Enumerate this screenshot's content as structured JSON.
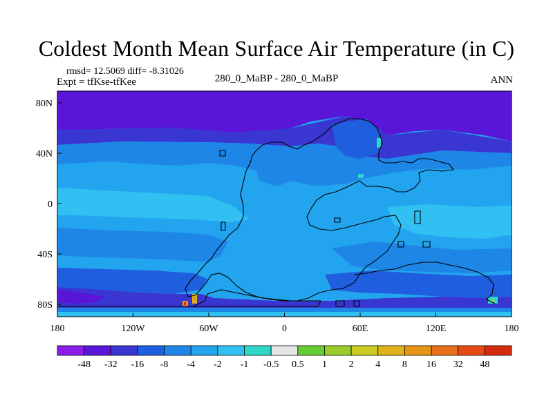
{
  "title": "Coldest Month Mean Surface Air Temperature (in C)",
  "stats_line": "rmsd= 12.5069 diff= -8.31026",
  "expt_line": "Expt = tfKse-tfKee",
  "center_label": "280_0_MaBP - 280_0_MaBP",
  "season_label": "ANN",
  "axes": {
    "x_ticks": [
      "180",
      "120W",
      "60W",
      "0",
      "60E",
      "120E",
      "180"
    ],
    "y_ticks": [
      "80N",
      "40N",
      "0",
      "40S",
      "80S"
    ]
  },
  "colorbar": {
    "colors": [
      "#8a1ee8",
      "#5a16d8",
      "#3a36d2",
      "#1f5ede",
      "#1e86e6",
      "#22a4ee",
      "#31c0f2",
      "#2ed8c8",
      "#e6e6e6",
      "#66cc33",
      "#9acd2a",
      "#cccc22",
      "#e0b21a",
      "#e89414",
      "#e8701a",
      "#e84a14",
      "#d42a10"
    ],
    "labels": [
      "-48",
      "-32",
      "-16",
      "-8",
      "-4",
      "-2",
      "-1",
      "-0.5",
      "0.5",
      "1",
      "2",
      "4",
      "8",
      "16",
      "32",
      "48"
    ]
  },
  "map_colors": {
    "very_cold": "#5a16d8",
    "cold": "#3a36d2",
    "cool": "#1f5ede",
    "mid": "#1e86e6",
    "mild": "#22a4ee",
    "light": "#31c0f2",
    "warm_spot": "#e89414",
    "hot_spot": "#d42a10",
    "cyan_spot": "#2ed8c8"
  }
}
